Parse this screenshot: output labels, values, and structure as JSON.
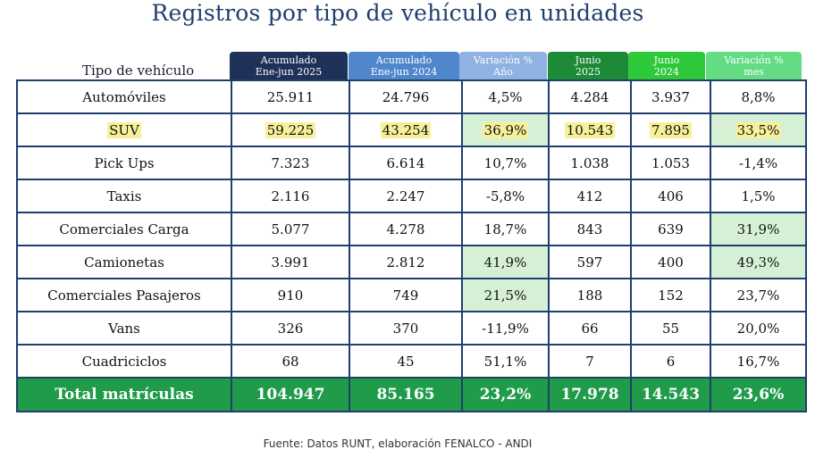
{
  "title": "Registros por tipo de vehículo en unidades",
  "source": "Fuente: Datos RUNT, elaboración FENALCO - ANDI",
  "row_header_label": "Tipo de vehículo",
  "colors": {
    "title": "#1f3f6e",
    "header_1": "#1f3158",
    "header_2": "#4f86cc",
    "header_3": "#8fb2e3",
    "header_4": "#1c8a36",
    "header_5": "#2ec93a",
    "header_6": "#63dc84",
    "highlight_yellow": "#f7f09a",
    "highlight_green": "#d6f0d6",
    "total_row": "#1f9b4a",
    "border": "#1f3f6e"
  },
  "chart_data": {
    "type": "table",
    "title": "Registros por tipo de vehículo en unidades",
    "columns": [
      {
        "line1": "Acumulado",
        "line2": "Ene-jun 2025",
        "color": "#1f3158"
      },
      {
        "line1": "Acumulado",
        "line2": "Ene-jun 2024",
        "color": "#4f86cc"
      },
      {
        "line1": "Variación %",
        "line2": "Año",
        "color": "#8fb2e3"
      },
      {
        "line1": "Junio",
        "line2": "2025",
        "color": "#1c8a36"
      },
      {
        "line1": "Junio",
        "line2": "2024",
        "color": "#2ec93a"
      },
      {
        "line1": "Variación %",
        "line2": "mes",
        "color": "#63dc84"
      }
    ],
    "rows": [
      {
        "label": "Automóviles",
        "values": [
          "25.911",
          "24.796",
          "4,5%",
          "4.284",
          "3.937",
          "8,8%"
        ],
        "label_highlight": false,
        "yellow": [],
        "green": []
      },
      {
        "label": "SUV",
        "values": [
          "59.225",
          "43.254",
          "36,9%",
          "10.543",
          "7.895",
          "33,5%"
        ],
        "label_highlight": true,
        "yellow": [
          0,
          1,
          2,
          3,
          4,
          5
        ],
        "green": [
          2,
          5
        ]
      },
      {
        "label": "Pick Ups",
        "values": [
          "7.323",
          "6.614",
          "10,7%",
          "1.038",
          "1.053",
          "-1,4%"
        ],
        "label_highlight": false,
        "yellow": [],
        "green": []
      },
      {
        "label": "Taxis",
        "values": [
          "2.116",
          "2.247",
          "-5,8%",
          "412",
          "406",
          "1,5%"
        ],
        "label_highlight": false,
        "yellow": [],
        "green": []
      },
      {
        "label": "Comerciales Carga",
        "values": [
          "5.077",
          "4.278",
          "18,7%",
          "843",
          "639",
          "31,9%"
        ],
        "label_highlight": false,
        "yellow": [],
        "green": [
          5
        ]
      },
      {
        "label": "Camionetas",
        "values": [
          "3.991",
          "2.812",
          "41,9%",
          "597",
          "400",
          "49,3%"
        ],
        "label_highlight": false,
        "yellow": [],
        "green": [
          2,
          5
        ]
      },
      {
        "label": "Comerciales Pasajeros",
        "values": [
          "910",
          "749",
          "21,5%",
          "188",
          "152",
          "23,7%"
        ],
        "label_highlight": false,
        "yellow": [],
        "green": [
          2
        ]
      },
      {
        "label": "Vans",
        "values": [
          "326",
          "370",
          "-11,9%",
          "66",
          "55",
          "20,0%"
        ],
        "label_highlight": false,
        "yellow": [],
        "green": []
      },
      {
        "label": "Cuadriciclos",
        "values": [
          "68",
          "45",
          "51,1%",
          "7",
          "6",
          "16,7%"
        ],
        "label_highlight": false,
        "yellow": [],
        "green": []
      }
    ],
    "total": {
      "label": "Total matrículas",
      "values": [
        "104.947",
        "85.165",
        "23,2%",
        "17.978",
        "14.543",
        "23,6%"
      ]
    }
  }
}
